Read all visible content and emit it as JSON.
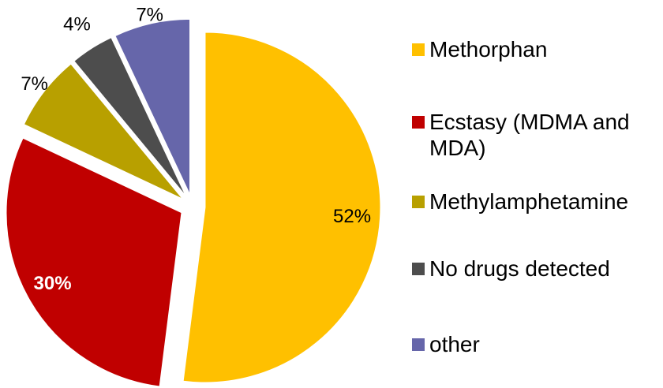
{
  "chart_data": {
    "type": "pie",
    "title": "",
    "slices": [
      {
        "label": "Methorphan",
        "value": 52,
        "display": "52%",
        "color": "#FFC000",
        "label_color": "#000000",
        "label_bold": false
      },
      {
        "label": "Ecstasy (MDMA and MDA)",
        "value": 30,
        "display": "30%",
        "color": "#C00000",
        "label_color": "#FFFFFF",
        "label_bold": true
      },
      {
        "label": "Methylamphetamine",
        "value": 7,
        "display": "7%",
        "color": "#B8A000",
        "label_color": "#000000",
        "label_bold": false
      },
      {
        "label": "No drugs detected",
        "value": 4,
        "display": "4%",
        "color": "#4D4D4D",
        "label_color": "#000000",
        "label_bold": false
      },
      {
        "label": "other",
        "value": 7,
        "display": "7%",
        "color": "#6666AA",
        "label_color": "#000000",
        "label_bold": false
      }
    ],
    "exploded": true,
    "start_angle": "12 o'clock, clockwise",
    "legend_placement": "right"
  }
}
